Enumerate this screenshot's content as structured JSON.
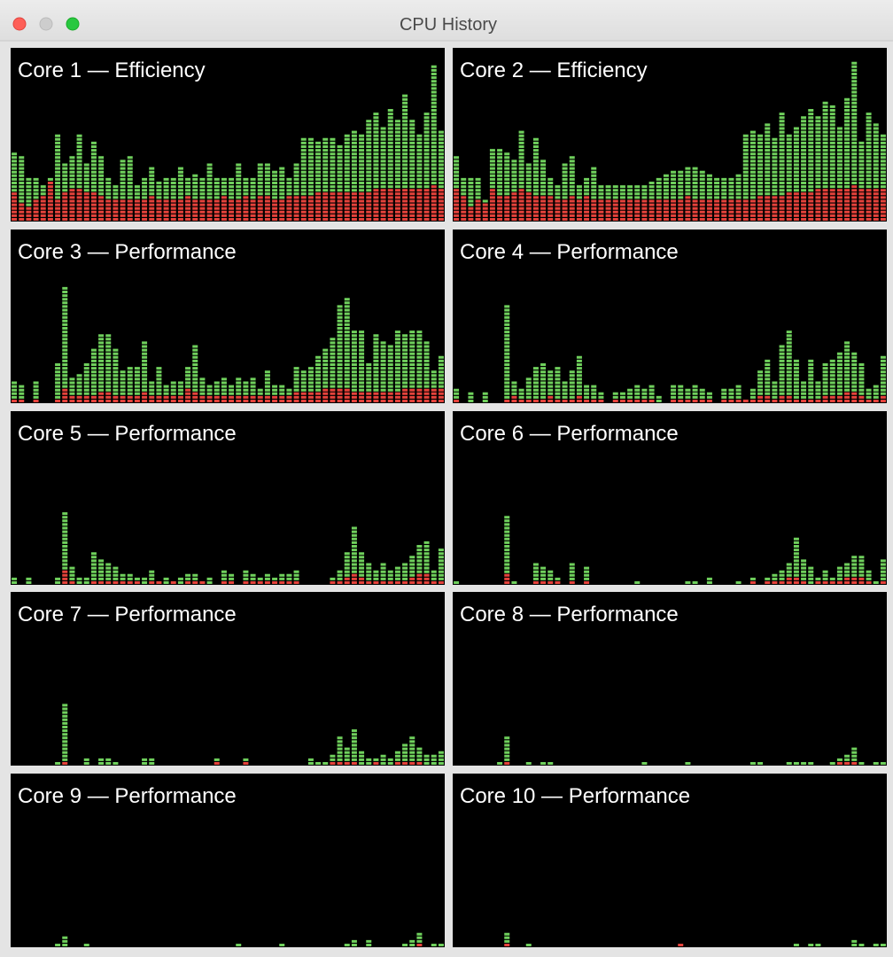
{
  "window": {
    "title": "CPU History"
  },
  "colors": {
    "system": "#e5423b",
    "user": "#6fd05c"
  },
  "cores": [
    {
      "title": "Core 1 — Efficiency",
      "system": [
        8,
        5,
        4,
        6,
        7,
        11,
        6,
        8,
        9,
        9,
        8,
        8,
        7,
        6,
        6,
        6,
        6,
        6,
        6,
        7,
        6,
        6,
        6,
        6,
        7,
        6,
        6,
        6,
        6,
        7,
        6,
        6,
        7,
        6,
        7,
        7,
        6,
        6,
        7,
        7,
        7,
        7,
        8,
        8,
        8,
        8,
        8,
        8,
        8,
        8,
        9,
        9,
        9,
        9,
        9,
        9,
        9,
        9,
        10,
        9
      ],
      "user": [
        11,
        13,
        8,
        6,
        3,
        1,
        18,
        8,
        9,
        15,
        8,
        14,
        11,
        6,
        4,
        11,
        12,
        4,
        6,
        8,
        5,
        6,
        6,
        9,
        5,
        7,
        6,
        10,
        6,
        5,
        6,
        10,
        5,
        6,
        9,
        9,
        8,
        9,
        5,
        9,
        16,
        16,
        14,
        15,
        15,
        13,
        16,
        17,
        16,
        20,
        21,
        17,
        22,
        19,
        26,
        19,
        15,
        21,
        33,
        16
      ]
    },
    {
      "title": "Core 2 — Efficiency",
      "system": [
        9,
        7,
        4,
        6,
        5,
        9,
        7,
        7,
        8,
        9,
        8,
        7,
        7,
        7,
        6,
        6,
        7,
        6,
        7,
        6,
        6,
        6,
        6,
        6,
        6,
        6,
        6,
        6,
        6,
        6,
        6,
        6,
        7,
        6,
        6,
        6,
        6,
        6,
        6,
        6,
        6,
        6,
        7,
        7,
        7,
        7,
        8,
        8,
        8,
        8,
        9,
        9,
        9,
        9,
        9,
        10,
        9,
        9,
        9,
        9
      ],
      "user": [
        9,
        5,
        8,
        6,
        1,
        11,
        13,
        12,
        9,
        16,
        8,
        16,
        10,
        5,
        4,
        10,
        11,
        4,
        5,
        9,
        4,
        4,
        4,
        4,
        4,
        4,
        4,
        5,
        6,
        7,
        8,
        8,
        8,
        9,
        8,
        7,
        6,
        6,
        6,
        7,
        18,
        19,
        17,
        20,
        16,
        23,
        16,
        18,
        21,
        23,
        20,
        24,
        23,
        17,
        25,
        34,
        13,
        21,
        18,
        15
      ]
    },
    {
      "title": "Core 3 — Performance",
      "system": [
        1,
        1,
        0,
        1,
        0,
        0,
        1,
        4,
        2,
        2,
        2,
        2,
        3,
        3,
        2,
        2,
        2,
        2,
        3,
        2,
        2,
        2,
        2,
        2,
        4,
        3,
        2,
        2,
        2,
        2,
        2,
        2,
        2,
        2,
        2,
        2,
        2,
        2,
        2,
        3,
        3,
        3,
        3,
        4,
        4,
        4,
        4,
        3,
        3,
        3,
        3,
        3,
        3,
        3,
        4,
        4,
        4,
        4,
        4,
        4
      ],
      "user": [
        5,
        4,
        0,
        5,
        0,
        0,
        10,
        28,
        5,
        6,
        9,
        13,
        16,
        16,
        13,
        7,
        8,
        8,
        14,
        4,
        8,
        3,
        4,
        4,
        6,
        13,
        5,
        3,
        4,
        5,
        3,
        5,
        4,
        5,
        2,
        7,
        3,
        3,
        2,
        7,
        6,
        7,
        10,
        11,
        14,
        23,
        25,
        17,
        17,
        8,
        16,
        14,
        13,
        17,
        15,
        16,
        16,
        13,
        5,
        9
      ]
    },
    {
      "title": "Core 4 — Performance",
      "system": [
        1,
        0,
        0,
        0,
        0,
        0,
        0,
        1,
        2,
        1,
        1,
        1,
        1,
        2,
        1,
        1,
        1,
        2,
        1,
        1,
        1,
        0,
        1,
        1,
        1,
        1,
        1,
        1,
        0,
        0,
        1,
        1,
        1,
        1,
        1,
        1,
        0,
        1,
        1,
        1,
        1,
        1,
        2,
        2,
        1,
        2,
        2,
        1,
        1,
        1,
        1,
        2,
        2,
        2,
        3,
        3,
        2,
        1,
        1,
        2
      ],
      "user": [
        3,
        0,
        3,
        0,
        3,
        0,
        0,
        26,
        4,
        3,
        6,
        9,
        10,
        7,
        9,
        5,
        8,
        11,
        4,
        4,
        2,
        0,
        2,
        2,
        3,
        4,
        3,
        4,
        2,
        0,
        4,
        4,
        3,
        4,
        3,
        2,
        0,
        3,
        3,
        4,
        0,
        3,
        7,
        10,
        5,
        14,
        18,
        11,
        5,
        11,
        5,
        9,
        10,
        12,
        14,
        11,
        9,
        3,
        4,
        11
      ]
    },
    {
      "title": "Core 5 — Performance",
      "system": [
        0,
        0,
        0,
        0,
        0,
        0,
        0,
        4,
        1,
        0,
        0,
        1,
        1,
        1,
        1,
        1,
        1,
        1,
        0,
        1,
        1,
        0,
        1,
        0,
        1,
        1,
        1,
        0,
        0,
        1,
        1,
        0,
        1,
        1,
        1,
        1,
        1,
        1,
        1,
        1,
        0,
        0,
        0,
        0,
        1,
        1,
        2,
        3,
        2,
        1,
        1,
        1,
        1,
        1,
        1,
        2,
        3,
        3,
        1,
        1
      ],
      "user": [
        2,
        0,
        2,
        0,
        0,
        0,
        2,
        16,
        4,
        2,
        2,
        8,
        6,
        5,
        4,
        2,
        2,
        1,
        2,
        3,
        0,
        2,
        0,
        2,
        2,
        2,
        0,
        2,
        0,
        3,
        2,
        0,
        3,
        2,
        1,
        2,
        1,
        2,
        2,
        3,
        0,
        0,
        0,
        0,
        1,
        3,
        7,
        13,
        7,
        5,
        3,
        5,
        3,
        4,
        5,
        6,
        8,
        9,
        3,
        9
      ]
    },
    {
      "title": "Core 6 — Performance",
      "system": [
        0,
        0,
        0,
        0,
        0,
        0,
        0,
        3,
        0,
        0,
        0,
        1,
        1,
        1,
        1,
        0,
        1,
        0,
        1,
        0,
        0,
        0,
        0,
        0,
        0,
        0,
        0,
        0,
        0,
        0,
        0,
        0,
        0,
        0,
        0,
        0,
        0,
        0,
        0,
        0,
        0,
        1,
        0,
        1,
        1,
        1,
        2,
        2,
        1,
        0,
        1,
        1,
        1,
        1,
        2,
        2,
        2,
        1,
        0,
        1
      ],
      "user": [
        1,
        0,
        0,
        0,
        0,
        0,
        0,
        16,
        1,
        0,
        0,
        5,
        4,
        3,
        1,
        0,
        5,
        0,
        4,
        0,
        0,
        0,
        0,
        0,
        0,
        1,
        0,
        0,
        0,
        0,
        0,
        0,
        1,
        1,
        0,
        2,
        0,
        0,
        0,
        1,
        0,
        1,
        0,
        1,
        2,
        3,
        4,
        11,
        6,
        5,
        1,
        3,
        1,
        4,
        4,
        6,
        6,
        3,
        1,
        6
      ]
    },
    {
      "title": "Core 7 — Performance",
      "system": [
        0,
        0,
        0,
        0,
        0,
        0,
        0,
        1,
        0,
        0,
        0,
        0,
        0,
        0,
        0,
        0,
        0,
        0,
        0,
        0,
        0,
        0,
        0,
        0,
        0,
        0,
        0,
        0,
        1,
        0,
        0,
        0,
        1,
        0,
        0,
        0,
        0,
        0,
        0,
        0,
        0,
        0,
        0,
        0,
        1,
        1,
        1,
        1,
        0,
        0,
        1,
        0,
        0,
        1,
        1,
        1,
        1,
        0,
        0,
        0
      ],
      "user": [
        0,
        0,
        0,
        0,
        0,
        0,
        1,
        16,
        0,
        0,
        2,
        0,
        2,
        2,
        1,
        0,
        0,
        0,
        2,
        2,
        0,
        0,
        0,
        0,
        0,
        0,
        0,
        0,
        1,
        0,
        0,
        0,
        1,
        0,
        0,
        0,
        0,
        0,
        0,
        0,
        0,
        2,
        1,
        1,
        2,
        7,
        4,
        9,
        4,
        2,
        1,
        3,
        2,
        3,
        5,
        7,
        4,
        3,
        3,
        4
      ]
    },
    {
      "title": "Core 8 — Performance",
      "system": [
        0,
        0,
        0,
        0,
        0,
        0,
        0,
        1,
        0,
        0,
        0,
        0,
        0,
        0,
        0,
        0,
        0,
        0,
        0,
        0,
        0,
        0,
        0,
        0,
        0,
        0,
        0,
        0,
        0,
        0,
        0,
        0,
        0,
        0,
        0,
        0,
        0,
        0,
        0,
        0,
        0,
        0,
        0,
        0,
        0,
        0,
        0,
        0,
        0,
        0,
        0,
        0,
        0,
        1,
        1,
        1,
        0,
        0,
        0,
        0
      ],
      "user": [
        0,
        0,
        0,
        0,
        0,
        0,
        1,
        7,
        0,
        0,
        1,
        0,
        1,
        1,
        0,
        0,
        0,
        0,
        0,
        0,
        0,
        0,
        0,
        0,
        0,
        0,
        1,
        0,
        0,
        0,
        0,
        0,
        1,
        0,
        0,
        0,
        0,
        0,
        0,
        0,
        0,
        1,
        1,
        0,
        0,
        0,
        1,
        1,
        1,
        1,
        0,
        0,
        1,
        1,
        2,
        4,
        1,
        0,
        1,
        1
      ]
    },
    {
      "title": "Core 9 — Performance",
      "system": [
        0,
        0,
        0,
        0,
        0,
        0,
        0,
        0,
        0,
        0,
        0,
        0,
        0,
        0,
        0,
        0,
        0,
        0,
        0,
        0,
        0,
        0,
        0,
        0,
        0,
        0,
        0,
        0,
        0,
        0,
        0,
        0,
        0,
        0,
        0,
        0,
        0,
        0,
        0,
        0,
        0,
        0,
        0,
        0,
        0,
        0,
        0,
        0,
        0,
        0,
        0,
        0,
        0,
        0,
        0,
        0,
        1,
        0,
        0,
        0
      ],
      "user": [
        0,
        0,
        0,
        0,
        0,
        0,
        1,
        3,
        0,
        0,
        1,
        0,
        0,
        0,
        0,
        0,
        0,
        0,
        0,
        0,
        0,
        0,
        0,
        0,
        0,
        0,
        0,
        0,
        0,
        0,
        0,
        1,
        0,
        0,
        0,
        0,
        0,
        1,
        0,
        0,
        0,
        0,
        0,
        0,
        0,
        0,
        1,
        2,
        0,
        2,
        0,
        0,
        0,
        0,
        1,
        2,
        3,
        0,
        1,
        1
      ]
    },
    {
      "title": "Core 10 — Performance",
      "system": [
        0,
        0,
        0,
        0,
        0,
        0,
        0,
        1,
        0,
        0,
        0,
        0,
        0,
        0,
        0,
        0,
        0,
        0,
        0,
        0,
        0,
        0,
        0,
        0,
        0,
        0,
        0,
        0,
        0,
        0,
        0,
        1,
        0,
        0,
        0,
        0,
        0,
        0,
        0,
        0,
        0,
        0,
        0,
        0,
        0,
        0,
        0,
        0,
        0,
        0,
        0,
        0,
        0,
        0,
        0,
        0,
        0,
        0,
        0,
        0
      ],
      "user": [
        0,
        0,
        0,
        0,
        0,
        0,
        0,
        3,
        0,
        0,
        1,
        0,
        0,
        0,
        0,
        0,
        0,
        0,
        0,
        0,
        0,
        0,
        0,
        0,
        0,
        0,
        0,
        0,
        0,
        0,
        0,
        0,
        0,
        0,
        0,
        0,
        0,
        0,
        0,
        0,
        0,
        0,
        0,
        0,
        0,
        0,
        0,
        1,
        0,
        1,
        1,
        0,
        0,
        0,
        0,
        2,
        1,
        0,
        1,
        1
      ]
    }
  ]
}
